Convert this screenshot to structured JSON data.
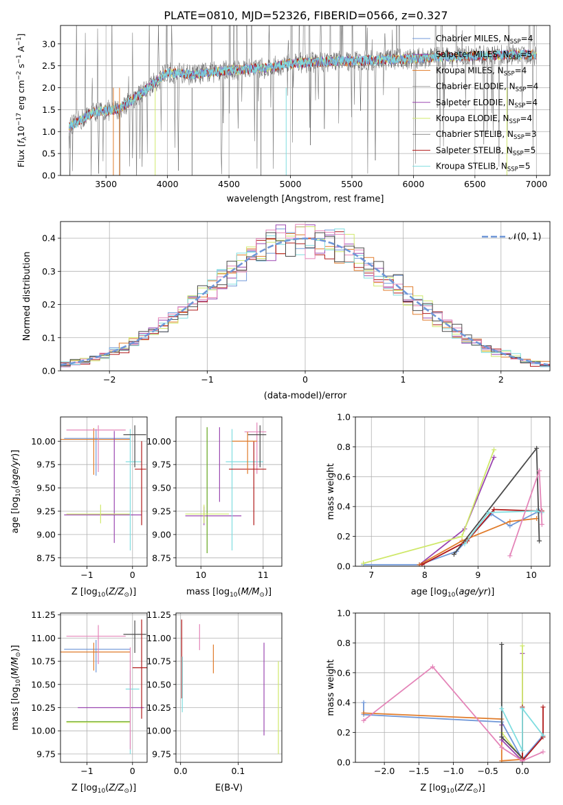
{
  "figure": {
    "title": "PLATE=0810, MJD=52326, FIBERID=0566, z=0.327"
  },
  "colors": {
    "Chabrier MILES": "#6f97d8",
    "Salpeter MILES": "#9a46b0",
    "Kroupa MILES": "#e07b2a",
    "Chabrier ELODIE": "#7a7a7a",
    "Salpeter ELODIE": "#9a46b0",
    "Kroupa ELODIE": "#cfe86a",
    "Chabrier STELIB": "#4a4a4a",
    "Salpeter STELIB": "#b01818",
    "Kroupa STELIB": "#7fdde0",
    "Kroupa STELIB alt": "#e484b8",
    "normal": "#6f97d8"
  },
  "chart_data": [
    {
      "id": "spectrum",
      "type": "line",
      "xlabel": "wavelength [Angstrom, rest frame]",
      "ylabel": "Flux [f_λ 10^-17 erg cm^-2 s^-1 A^-1]",
      "xlim": [
        3130,
        7110
      ],
      "ylim": [
        0,
        3.42
      ],
      "xticks": [
        3500,
        4000,
        4500,
        5000,
        5500,
        6000,
        6500,
        7000
      ],
      "yticks": [
        0.0,
        0.5,
        1.0,
        1.5,
        2.0,
        2.5,
        3.0
      ],
      "continuum": {
        "x": [
          3200,
          3400,
          3600,
          3800,
          4000,
          4200,
          4500,
          4800,
          5000,
          5300,
          5600,
          5900,
          6200,
          6500,
          6800,
          7000
        ],
        "y": [
          1.1,
          1.45,
          1.5,
          1.9,
          2.35,
          2.3,
          2.4,
          2.45,
          2.55,
          2.6,
          2.62,
          2.65,
          2.7,
          2.72,
          2.75,
          2.75
        ]
      },
      "legend": [
        {
          "label": "Chabrier MILES, N",
          "sub": "SSP",
          "suffix": "=4",
          "color": "#6f97d8",
          "width": 1
        },
        {
          "label": "Salpeter MILES, N",
          "sub": "SSP",
          "suffix": "=5",
          "color": "#9a46b0",
          "width": 1
        },
        {
          "label": "Kroupa MILES, N",
          "sub": "SSP",
          "suffix": "=4",
          "color": "#e07b2a",
          "width": 1
        },
        {
          "label": "Chabrier ELODIE, N",
          "sub": "SSP",
          "suffix": "=4",
          "color": "#7a7a7a",
          "width": 0.6
        },
        {
          "label": "Salpeter ELODIE, N",
          "sub": "SSP",
          "suffix": "=4",
          "color": "#9a46b0",
          "width": 1
        },
        {
          "label": "Kroupa ELODIE, N",
          "sub": "SSP",
          "suffix": "=4",
          "color": "#cfe86a",
          "width": 1
        },
        {
          "label": "Chabrier STELIB, N",
          "sub": "SSP",
          "suffix": "=3",
          "color": "#4a4a4a",
          "width": 0.6
        },
        {
          "label": "Salpeter STELIB, N",
          "sub": "SSP",
          "suffix": "=5",
          "color": "#b01818",
          "width": 1
        },
        {
          "label": "Kroupa STELIB, N",
          "sub": "SSP",
          "suffix": "=5",
          "color": "#7fdde0",
          "width": 1
        }
      ]
    },
    {
      "id": "residuals",
      "type": "bar",
      "xlabel": "(data-model)/error",
      "ylabel": "Normed distribution",
      "xlim": [
        -2.5,
        2.5
      ],
      "ylim": [
        0,
        0.45
      ],
      "xticks": [
        -2,
        -1,
        0,
        1,
        2
      ],
      "yticks": [
        0.0,
        0.1,
        0.2,
        0.3,
        0.4
      ],
      "bin_width": 0.1,
      "legend_label": "𝒩(0, 1)",
      "series_colors": [
        "#6f97d8",
        "#9a46b0",
        "#e07b2a",
        "#cfe86a",
        "#b01818",
        "#7fdde0",
        "#e484b8",
        "#4a4a4a"
      ]
    },
    {
      "id": "z-age",
      "type": "scatter",
      "xlabel": "Z [log10(Z/Z⊙)]",
      "ylabel": "age [log10(age/yr)]",
      "xlim": [
        -1.58,
        0.32
      ],
      "ylim": [
        8.66,
        10.26
      ],
      "xticks": [
        -1,
        0
      ],
      "yticks": [
        8.75,
        9.0,
        9.25,
        9.5,
        9.75,
        10.0
      ],
      "errorbars": [
        {
          "x": -0.8,
          "xerr": [
            0.7,
            0.75
          ],
          "y": 10.03,
          "yerr": [
            0.4,
            0.1
          ],
          "color": "#6f97d8"
        },
        {
          "x": -0.85,
          "xerr": [
            0.75,
            0.8
          ],
          "y": 10.02,
          "yerr": [
            0.38,
            0.12
          ],
          "color": "#e07b2a"
        },
        {
          "x": -0.75,
          "xerr": [
            0.7,
            0.6
          ],
          "y": 10.12,
          "yerr": [
            0.45,
            0.05
          ],
          "color": "#e484b8"
        },
        {
          "x": -0.4,
          "xerr": [
            1.1,
            0.6
          ],
          "y": 9.21,
          "yerr": [
            0.3,
            0.9
          ],
          "color": "#9a46b0"
        },
        {
          "x": -0.7,
          "xerr": [
            0.75,
            0.65
          ],
          "y": 9.22,
          "yerr": [
            0.1,
            0.1
          ],
          "color": "#cfe86a"
        },
        {
          "x": -0.05,
          "xerr": [
            0.1,
            0.25
          ],
          "y": 9.78,
          "yerr": [
            0.95,
            0.35
          ],
          "color": "#7fdde0"
        },
        {
          "x": 0.05,
          "xerr": [
            0.25,
            0.25
          ],
          "y": 10.07,
          "yerr": [
            0.35,
            0.1
          ],
          "color": "#4a4a4a"
        },
        {
          "x": 0.2,
          "xerr": [
            0.15,
            0.1
          ],
          "y": 9.7,
          "yerr": [
            0.6,
            0.3
          ],
          "color": "#b01818"
        }
      ]
    },
    {
      "id": "mass-age",
      "type": "scatter",
      "xlabel": "mass [log10(M/M⊙)]",
      "ylabel": "",
      "xlim": [
        9.6,
        11.3
      ],
      "ylim": [
        8.66,
        10.26
      ],
      "xticks": [
        10,
        11
      ],
      "yticks": [
        8.75,
        9.0,
        9.25,
        9.5,
        9.75,
        10.0
      ],
      "errorbars": [
        {
          "x": 10.1,
          "xerr": [
            0.0,
            0.0
          ],
          "y": 9.65,
          "yerr": [
            0.85,
            0.5
          ],
          "color": "#cfe86a"
        },
        {
          "x": 10.1,
          "xerr": [
            0.0,
            0.0
          ],
          "y": 9.65,
          "yerr": [
            0.85,
            0.5
          ],
          "color": "#6aa833"
        },
        {
          "x": 10.3,
          "xerr": [
            0.0,
            0.0
          ],
          "y": 9.65,
          "yerr": [
            0.3,
            0.5
          ],
          "color": "#9a46b0"
        },
        {
          "x": 10.05,
          "xerr": [
            0.3,
            0.6
          ],
          "y": 9.2,
          "yerr": [
            0.1,
            0.1
          ],
          "color": "#9a46b0"
        },
        {
          "x": 10.05,
          "xerr": [
            0.3,
            0.4
          ],
          "y": 9.22,
          "yerr": [
            0.1,
            0.1
          ],
          "color": "#cfe86a"
        },
        {
          "x": 10.5,
          "xerr": [
            0.1,
            0.5
          ],
          "y": 9.78,
          "yerr": [
            0.95,
            0.35
          ],
          "color": "#7fdde0"
        },
        {
          "x": 10.9,
          "xerr": [
            0.2,
            0.15
          ],
          "y": 10.1,
          "yerr": [
            0.45,
            0.1
          ],
          "color": "#e484b8"
        },
        {
          "x": 10.95,
          "xerr": [
            0.2,
            0.1
          ],
          "y": 10.07,
          "yerr": [
            0.35,
            0.1
          ],
          "color": "#4a4a4a"
        },
        {
          "x": 10.85,
          "xerr": [
            0.4,
            0.2
          ],
          "y": 9.7,
          "yerr": [
            0.6,
            0.3
          ],
          "color": "#b01818"
        },
        {
          "x": 10.75,
          "xerr": [
            0.25,
            0.15
          ],
          "y": 10.0,
          "yerr": [
            0.35,
            0.1
          ],
          "color": "#e07b2a"
        }
      ]
    },
    {
      "id": "age-weight",
      "type": "line",
      "xlabel": "age [log10(age/yr)]",
      "ylabel": "mass weight",
      "xlim": [
        6.7,
        10.35
      ],
      "ylim": [
        0,
        1.0
      ],
      "xticks": [
        7,
        8,
        9,
        10
      ],
      "yticks": [
        0.0,
        0.2,
        0.4,
        0.6,
        0.8,
        1.0
      ],
      "series": [
        {
          "name": "",
          "color": "#6f97d8",
          "x": [
            6.85,
            7.9,
            8.6,
            9.25,
            9.6,
            10.15
          ],
          "y": [
            0.01,
            0.01,
            0.1,
            0.35,
            0.27,
            0.37
          ]
        },
        {
          "name": "",
          "color": "#9a46b0",
          "x": [
            7.9,
            8.75,
            9.3
          ],
          "y": [
            0.01,
            0.25,
            0.73
          ]
        },
        {
          "name": "",
          "color": "#e07b2a",
          "x": [
            7.9,
            8.7,
            9.6,
            10.1
          ],
          "y": [
            0.01,
            0.17,
            0.3,
            0.32
          ]
        },
        {
          "name": "",
          "color": "#cfe86a",
          "x": [
            6.85,
            8.7,
            9.3
          ],
          "y": [
            0.02,
            0.2,
            0.78
          ]
        },
        {
          "name": "",
          "color": "#4a4a4a",
          "x": [
            8.55,
            10.1,
            10.15
          ],
          "y": [
            0.08,
            0.79,
            0.17
          ]
        },
        {
          "name": "",
          "color": "#b01818",
          "x": [
            7.95,
            8.8,
            9.3,
            10.1,
            10.2
          ],
          "y": [
            0.01,
            0.17,
            0.38,
            0.37,
            0.37
          ]
        },
        {
          "name": "",
          "color": "#7fdde0",
          "x": [
            8.75,
            9.2,
            10.1,
            10.2
          ],
          "y": [
            0.15,
            0.36,
            0.37,
            0.36
          ]
        },
        {
          "name": "",
          "color": "#e484b8",
          "x": [
            9.6,
            10.15,
            10.2
          ],
          "y": [
            0.07,
            0.64,
            0.28
          ]
        }
      ]
    },
    {
      "id": "z-mass",
      "type": "scatter",
      "xlabel": "Z [log10(Z/Z⊙)]",
      "ylabel": "mass [log10(M/M⊙)]",
      "xlim": [
        -1.58,
        0.32
      ],
      "ylim": [
        9.66,
        11.27
      ],
      "xticks": [
        -1,
        0
      ],
      "yticks": [
        9.75,
        10.0,
        10.25,
        10.5,
        10.75,
        11.0,
        11.25
      ],
      "errorbars": [
        {
          "x": -0.8,
          "xerr": [
            0.7,
            0.75
          ],
          "y": 10.88,
          "yerr": [
            0.25,
            0.1
          ],
          "color": "#6f97d8"
        },
        {
          "x": -0.85,
          "xerr": [
            0.75,
            0.8
          ],
          "y": 10.85,
          "yerr": [
            0.2,
            0.1
          ],
          "color": "#e07b2a"
        },
        {
          "x": -0.75,
          "xerr": [
            0.7,
            0.6
          ],
          "y": 11.02,
          "yerr": [
            0.3,
            0.12
          ],
          "color": "#e484b8"
        },
        {
          "x": -0.4,
          "xerr": [
            0.8,
            0.65
          ],
          "y": 10.25,
          "yerr": [
            0.0,
            0.0
          ],
          "color": "#9a46b0"
        },
        {
          "x": -0.7,
          "xerr": [
            0.75,
            0.65
          ],
          "y": 10.1,
          "yerr": [
            0.0,
            0.0
          ],
          "color": "#6aa833"
        },
        {
          "x": -0.7,
          "xerr": [
            0.75,
            0.65
          ],
          "y": 10.09,
          "yerr": [
            0.0,
            0.0
          ],
          "color": "#cfe86a"
        },
        {
          "x": -0.05,
          "xerr": [
            0.1,
            0.2
          ],
          "y": 10.45,
          "yerr": [
            0.7,
            0.2
          ],
          "color": "#7fdde0"
        },
        {
          "x": 0.05,
          "xerr": [
            0.25,
            0.25
          ],
          "y": 11.04,
          "yerr": [
            0.2,
            0.15
          ],
          "color": "#4a4a4a"
        },
        {
          "x": 0.2,
          "xerr": [
            0.2,
            0.15
          ],
          "y": 10.68,
          "yerr": [
            0.55,
            0.52
          ],
          "color": "#b01818"
        },
        {
          "x": -0.05,
          "xerr": [
            0.0,
            0.0
          ],
          "y": 10.3,
          "yerr": [
            0.5,
            0.6
          ],
          "color": "#e484b8"
        }
      ]
    },
    {
      "id": "ebv-mass",
      "type": "scatter",
      "xlabel": "E(B-V)",
      "ylabel": "",
      "xlim": [
        -0.008,
        0.176
      ],
      "ylim": [
        9.66,
        11.27
      ],
      "xticks": [
        0.0,
        0.1
      ],
      "yticks": [
        9.75,
        10.0,
        10.25,
        10.5,
        10.75,
        11.0,
        11.25
      ],
      "errorbars": [
        {
          "x": 0.002,
          "xerr": [
            0,
            0
          ],
          "y": 10.85,
          "yerr": [
            0.5,
            0.35
          ],
          "color": "#b01818"
        },
        {
          "x": 0.003,
          "xerr": [
            0,
            0
          ],
          "y": 10.5,
          "yerr": [
            0.3,
            0.3
          ],
          "color": "#7fdde0"
        },
        {
          "x": 0.033,
          "xerr": [
            0,
            0
          ],
          "y": 11.02,
          "yerr": [
            0.15,
            0.13
          ],
          "color": "#e484b8"
        },
        {
          "x": 0.057,
          "xerr": [
            0,
            0
          ],
          "y": 10.78,
          "yerr": [
            0.16,
            0.15
          ],
          "color": "#e07b2a"
        },
        {
          "x": 0.145,
          "xerr": [
            0,
            0
          ],
          "y": 10.45,
          "yerr": [
            0.5,
            0.5
          ],
          "color": "#9a46b0"
        },
        {
          "x": 0.17,
          "xerr": [
            0,
            0
          ],
          "y": 10.25,
          "yerr": [
            0.5,
            0.5
          ],
          "color": "#cfe86a"
        }
      ]
    },
    {
      "id": "z-weight",
      "type": "line",
      "xlabel": "Z [log10(Z/Z⊙)]",
      "ylabel": "mass weight",
      "xlim": [
        -2.42,
        0.4
      ],
      "ylim": [
        0,
        1.0
      ],
      "xticks": [
        -2.0,
        -1.5,
        -1.0,
        -0.5,
        0.0
      ],
      "yticks": [
        0.0,
        0.2,
        0.4,
        0.6,
        0.8,
        1.0
      ],
      "series": [
        {
          "name": "",
          "color": "#6f97d8",
          "x": [
            -2.3,
            -2.3,
            -0.3,
            0.0,
            0.3
          ],
          "y": [
            0.4,
            0.32,
            0.27,
            0.02,
            0.18
          ]
        },
        {
          "name": "",
          "color": "#e07b2a",
          "x": [
            -2.3,
            -0.3,
            -0.3,
            0.0
          ],
          "y": [
            0.33,
            0.29,
            0.01,
            0.02
          ]
        },
        {
          "name": "",
          "color": "#9a46b0",
          "x": [
            -0.3,
            -0.3,
            0.0,
            0.0
          ],
          "y": [
            0.25,
            0.15,
            0.01,
            0.73
          ]
        },
        {
          "name": "",
          "color": "#cfe86a",
          "x": [
            -0.3,
            0.0,
            0.0
          ],
          "y": [
            0.2,
            0.02,
            0.78
          ]
        },
        {
          "name": "",
          "color": "#4a4a4a",
          "x": [
            -0.3,
            -0.3,
            0.0
          ],
          "y": [
            0.79,
            0.17,
            0.03
          ]
        },
        {
          "name": "",
          "color": "#b01818",
          "x": [
            0.0,
            0.0,
            0.3,
            0.3
          ],
          "y": [
            0.37,
            0.01,
            0.17,
            0.37
          ]
        },
        {
          "name": "",
          "color": "#7fdde0",
          "x": [
            -0.3,
            0.0,
            0.0,
            0.3
          ],
          "y": [
            0.36,
            0.08,
            0.36,
            0.18
          ]
        },
        {
          "name": "",
          "color": "#e484b8",
          "x": [
            -2.3,
            -1.3,
            -0.3,
            0.0,
            0.3
          ],
          "y": [
            0.28,
            0.64,
            0.1,
            0.01,
            0.07
          ]
        }
      ]
    }
  ]
}
